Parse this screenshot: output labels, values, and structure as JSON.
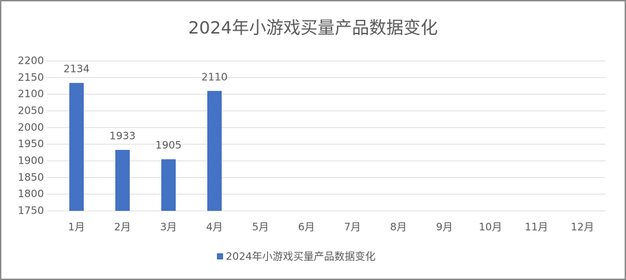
{
  "chart_data": {
    "type": "bar",
    "title": "2024年小游戏买量产品数据变化",
    "categories": [
      "1月",
      "2月",
      "3月",
      "4月",
      "5月",
      "6月",
      "7月",
      "8月",
      "9月",
      "10月",
      "11月",
      "12月"
    ],
    "series": [
      {
        "name": "2024年小游戏买量产品数据变化",
        "color": "#4472c4",
        "values": [
          2134,
          1933,
          1905,
          2110,
          null,
          null,
          null,
          null,
          null,
          null,
          null,
          null
        ]
      }
    ],
    "ylim": [
      1750,
      2200
    ],
    "yticks": [
      1750,
      1800,
      1850,
      1900,
      1950,
      2000,
      2050,
      2100,
      2150,
      2200
    ],
    "grid": true,
    "data_labels": true,
    "legend": "bottom"
  }
}
